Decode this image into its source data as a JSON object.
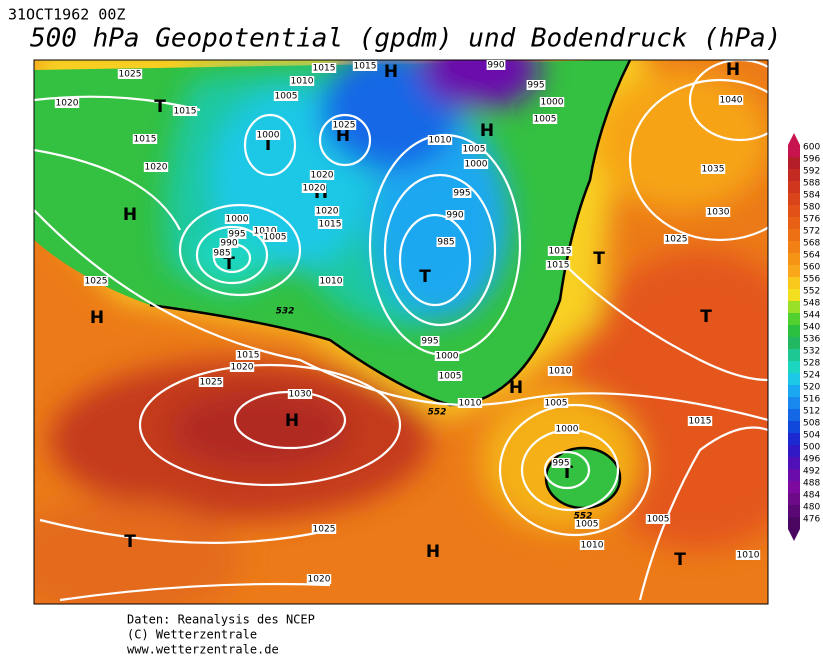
{
  "header": {
    "date": "31OCT1962 00Z",
    "title": "500 hPa Geopotential (gpdm) und Bodendruck (hPa)"
  },
  "map": {
    "centers": [
      "H",
      "H",
      "T",
      "T",
      "H",
      "H",
      "H",
      "T",
      "T",
      "T",
      "H",
      "T",
      "H",
      "H",
      "T",
      "T",
      "H",
      "T",
      "H"
    ],
    "isobar_labels": [
      "1025",
      "1020",
      "1015",
      "1015",
      "1020",
      "1010",
      "1015",
      "1015",
      "1005",
      "1000",
      "1025",
      "1010",
      "1005",
      "1000",
      "995",
      "990",
      "985",
      "995",
      "1000",
      "1005",
      "990",
      "1040",
      "1035",
      "1030",
      "1025",
      "1015",
      "1015",
      "1000",
      "995",
      "990",
      "985",
      "1010",
      "1005",
      "1020",
      "1020",
      "1020",
      "1015",
      "1010",
      "995",
      "1000",
      "1005",
      "1010",
      "1015",
      "1020",
      "1025",
      "1030",
      "1010",
      "1005",
      "1000",
      "995",
      "1005",
      "1010",
      "1005",
      "1015",
      "1010",
      "1025",
      "1020",
      "1025"
    ],
    "contour_labels": [
      "532",
      "552",
      "552"
    ]
  },
  "colorbar": {
    "ticks": [
      600,
      596,
      592,
      588,
      584,
      580,
      576,
      572,
      568,
      564,
      560,
      556,
      552,
      548,
      544,
      540,
      536,
      532,
      528,
      524,
      520,
      516,
      512,
      508,
      504,
      500,
      496,
      492,
      488,
      484,
      480,
      476
    ],
    "colors": [
      "#c8144e",
      "#b41e28",
      "#c22a22",
      "#d0361e",
      "#da441a",
      "#e25218",
      "#e86016",
      "#ee7014",
      "#f28014",
      "#f69416",
      "#f8a81a",
      "#f8c81c",
      "#f2e020",
      "#9ae028",
      "#52d030",
      "#2cc040",
      "#22b862",
      "#1ec892",
      "#1cd6c0",
      "#1cc8e6",
      "#1aa8f0",
      "#1888ee",
      "#1468e6",
      "#1048dc",
      "#1c28d0",
      "#3018c4",
      "#5010b8",
      "#6a0cac",
      "#7c0a9e",
      "#6c0a88",
      "#5a0874",
      "#4a0660"
    ]
  },
  "footer": {
    "lines": [
      "Daten: Reanalysis des NCEP",
      "(C) Wetterzentrale",
      "www.wetterzentrale.de"
    ]
  }
}
